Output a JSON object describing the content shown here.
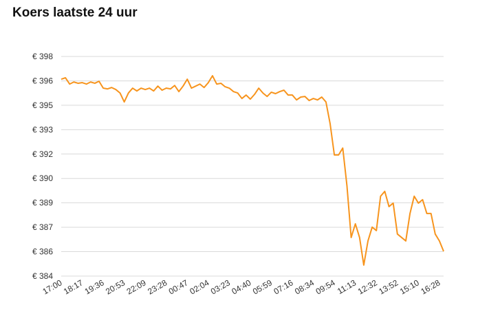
{
  "chart_data": {
    "type": "line",
    "title": "Koers laatste 24 uur",
    "categories": [
      "17:00",
      null,
      null,
      null,
      null,
      "18:17",
      null,
      null,
      null,
      null,
      "19:36",
      null,
      null,
      null,
      null,
      "20:53",
      null,
      null,
      null,
      null,
      "22:09",
      null,
      null,
      null,
      null,
      "23:28",
      null,
      null,
      null,
      null,
      "00:47",
      null,
      null,
      null,
      null,
      "02:04",
      null,
      null,
      null,
      null,
      "03:23",
      null,
      null,
      null,
      null,
      "04:40",
      null,
      null,
      null,
      null,
      "05:59",
      null,
      null,
      null,
      null,
      "07:16",
      null,
      null,
      null,
      null,
      "08:34",
      null,
      null,
      null,
      null,
      "09:54",
      null,
      null,
      null,
      null,
      "11:13",
      null,
      null,
      null,
      null,
      "12:32",
      null,
      null,
      null,
      null,
      "13:52",
      null,
      null,
      null,
      null,
      "15:10",
      null,
      null,
      null,
      null,
      "16:28",
      null
    ],
    "series": [
      {
        "color": "#f7941d",
        "values": [
          396.55,
          396.64,
          396.24,
          396.37,
          396.29,
          396.33,
          396.24,
          396.37,
          396.29,
          396.42,
          395.98,
          395.93,
          396.02,
          395.89,
          395.67,
          395.1,
          395.67,
          395.98,
          395.8,
          395.98,
          395.89,
          395.98,
          395.8,
          396.11,
          395.85,
          395.98,
          395.93,
          396.15,
          395.76,
          396.11,
          396.55,
          395.98,
          396.11,
          396.24,
          396.02,
          396.33,
          396.77,
          396.24,
          396.29,
          396.07,
          395.98,
          395.76,
          395.67,
          395.32,
          395.54,
          395.28,
          395.58,
          395.98,
          395.67,
          395.45,
          395.72,
          395.63,
          395.76,
          395.85,
          395.54,
          395.54,
          395.23,
          395.41,
          395.45,
          395.19,
          395.32,
          395.23,
          395.41,
          395.1,
          393.7,
          391.72,
          391.72,
          392.16,
          389.75,
          386.46,
          387.33,
          386.46,
          384.7,
          386.24,
          387.12,
          386.9,
          389.09,
          389.4,
          388.43,
          388.65,
          386.68,
          386.46,
          386.24,
          387.99,
          389.09,
          388.65,
          388.87,
          387.99,
          387.99,
          386.68,
          386.24,
          385.58
        ]
      }
    ],
    "ylim": [
      384,
      398
    ],
    "yticks": [
      {
        "value": 384,
        "label": "€ 384"
      },
      {
        "value": 385.556,
        "label": "€ 386"
      },
      {
        "value": 387.111,
        "label": "€ 387"
      },
      {
        "value": 388.667,
        "label": "€ 389"
      },
      {
        "value": 390.222,
        "label": "€ 390"
      },
      {
        "value": 391.778,
        "label": "€ 392"
      },
      {
        "value": 393.333,
        "label": "€ 393"
      },
      {
        "value": 394.889,
        "label": "€ 395"
      },
      {
        "value": 396.444,
        "label": "€ 396"
      },
      {
        "value": 398,
        "label": "€ 398"
      }
    ],
    "grid": true
  }
}
